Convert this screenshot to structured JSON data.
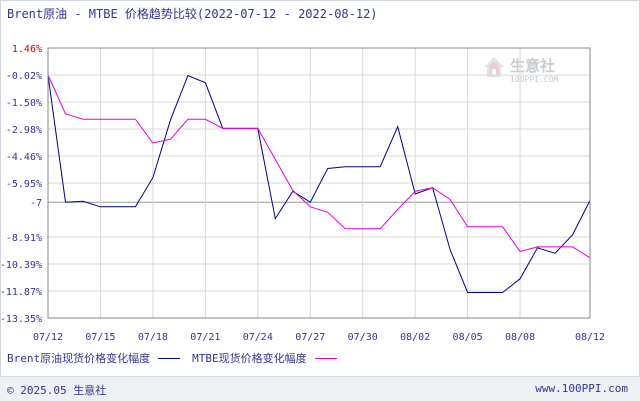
{
  "title": "Brent原油 - MTBE 价格趋势比较(2022-07-12 - 2022-08-12)",
  "watermark": {
    "text": "生意社",
    "sub": "100PPI.COM"
  },
  "footer": {
    "left": "© 2025.05 生意社",
    "right": "www.100PPI.com"
  },
  "colors": {
    "brent": "#00008b",
    "mtbe": "#e600e6",
    "axis_label_red": "#cc0000",
    "axis_label_blue": "#333399",
    "grid": "#d9d9d9",
    "zero_line": "#999999"
  },
  "chart_data": {
    "type": "line",
    "y_ticks": [
      "1.46%",
      "-0.02%",
      "-1.50%",
      "-2.98%",
      "-4.46%",
      "-5.95%",
      "-7",
      "-8.91%",
      "-10.39%",
      "-11.87%",
      "-13.35%"
    ],
    "y_tick_values": [
      1.46,
      -0.02,
      -1.5,
      -2.98,
      -4.46,
      -5.95,
      -7.0,
      -8.91,
      -10.39,
      -11.87,
      -13.35
    ],
    "ylim": [
      -13.35,
      1.46
    ],
    "x_ticks": [
      "07/12",
      "07/15",
      "07/18",
      "07/21",
      "07/24",
      "07/27",
      "07/30",
      "08/02",
      "08/05",
      "08/08",
      "08/12"
    ],
    "x_tick_days": [
      0,
      3,
      6,
      9,
      12,
      15,
      18,
      21,
      24,
      27,
      31
    ],
    "xlim": [
      0,
      31
    ],
    "series": [
      {
        "name": "Brent原油现货价格变化幅度",
        "x": [
          0,
          1,
          2,
          3,
          4,
          5,
          6,
          7,
          8,
          9,
          10,
          11,
          12,
          13,
          14,
          15,
          16,
          17,
          18,
          19,
          20,
          21,
          22,
          23,
          24,
          25,
          26,
          27,
          28,
          29,
          30,
          31
        ],
        "values": [
          -0.02,
          -7.0,
          -6.95,
          -7.25,
          -7.25,
          -7.25,
          -5.65,
          -2.5,
          -0.05,
          -0.45,
          -2.95,
          -2.95,
          -2.95,
          -7.9,
          -6.4,
          -7.0,
          -5.15,
          -5.05,
          -5.05,
          -5.05,
          -2.85,
          -6.55,
          -6.2,
          -9.6,
          -11.95,
          -11.95,
          -11.95,
          -11.2,
          -9.5,
          -9.8,
          -8.8,
          -6.9
        ]
      },
      {
        "name": "MTBE现货价格变化幅度",
        "x": [
          0,
          1,
          2,
          3,
          4,
          5,
          6,
          7,
          8,
          9,
          10,
          11,
          12,
          13,
          14,
          15,
          16,
          17,
          18,
          19,
          20,
          21,
          22,
          23,
          24,
          25,
          26,
          27,
          28,
          29,
          30,
          31
        ],
        "values": [
          -0.02,
          -2.15,
          -2.45,
          -2.45,
          -2.45,
          -2.45,
          -3.75,
          -3.55,
          -2.45,
          -2.45,
          -2.95,
          -2.95,
          -2.95,
          -4.65,
          -6.35,
          -7.25,
          -7.55,
          -8.45,
          -8.45,
          -8.45,
          -7.4,
          -6.4,
          -6.2,
          -6.85,
          -8.35,
          -8.35,
          -8.35,
          -9.7,
          -9.45,
          -9.45,
          -9.45,
          -10.05
        ]
      }
    ]
  }
}
